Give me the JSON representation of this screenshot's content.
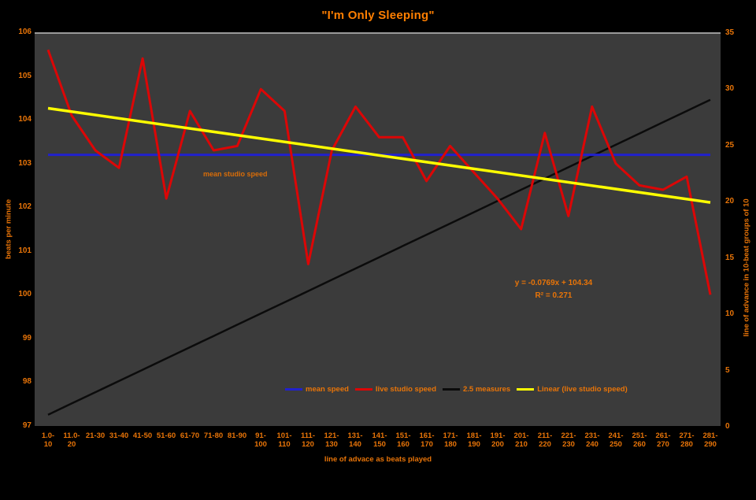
{
  "colors": {
    "background": "#000000",
    "plot_bg": "#3b3b3b",
    "plot_border_top": "#9a9a9a",
    "label_orange": "#e87408",
    "title_orange": "#ff7f00",
    "mean_line": "#2121cd",
    "live_line": "#dc0606",
    "measures_line": "#0b0b0b",
    "trend_line": "#ffff00"
  },
  "chart_data": {
    "type": "line",
    "title": "\"I'm Only Sleeping\"",
    "xlabel": "line of advace as beats played",
    "ylabel_left": "beats per minute",
    "ylabel_right": "line of advance in 10-beat groups of 10",
    "left_axis": {
      "min": 97,
      "max": 106,
      "step": 1,
      "ticks": [
        106,
        105,
        104,
        103,
        102,
        101,
        100,
        99,
        98,
        97
      ]
    },
    "right_axis": {
      "min": 0,
      "max": 35,
      "step": 5,
      "ticks": [
        35,
        30,
        25,
        20,
        15,
        10,
        5,
        0
      ]
    },
    "categories": [
      "1.0-10",
      "11.0-20",
      "21-30",
      "31-40",
      "41-50",
      "51-60",
      "61-70",
      "71-80",
      "81-90",
      "91-100",
      "101-110",
      "111-120",
      "121-130",
      "131-140",
      "141-150",
      "151-160",
      "161-170",
      "171-180",
      "181-190",
      "191-200",
      "201-210",
      "211-220",
      "221-230",
      "231-240",
      "241-250",
      "251-260",
      "261-270",
      "271-280",
      "281-290"
    ],
    "category_label_lines": [
      [
        "1.0-",
        "10"
      ],
      [
        "11.0-",
        "20"
      ],
      [
        "21-30"
      ],
      [
        "31-40"
      ],
      [
        "41-50"
      ],
      [
        "51-60"
      ],
      [
        "61-70"
      ],
      [
        "71-80"
      ],
      [
        "81-90"
      ],
      [
        "91-",
        "100"
      ],
      [
        "101-",
        "110"
      ],
      [
        "111-",
        "120"
      ],
      [
        "121-",
        "130"
      ],
      [
        "131-",
        "140"
      ],
      [
        "141-",
        "150"
      ],
      [
        "151-",
        "160"
      ],
      [
        "161-",
        "170"
      ],
      [
        "171-",
        "180"
      ],
      [
        "181-",
        "190"
      ],
      [
        "191-",
        "200"
      ],
      [
        "201-",
        "210"
      ],
      [
        "211-",
        "220"
      ],
      [
        "221-",
        "230"
      ],
      [
        "231-",
        "240"
      ],
      [
        "241-",
        "250"
      ],
      [
        "251-",
        "260"
      ],
      [
        "261-",
        "270"
      ],
      [
        "271-",
        "280"
      ],
      [
        "281-",
        "290"
      ]
    ],
    "series": [
      {
        "name": "mean speed",
        "slug": "mean-speed",
        "axis": "left",
        "color_key": "mean_line",
        "stroke_width": 3,
        "z": 2,
        "constant": 103.2
      },
      {
        "name": "live studio speed",
        "slug": "live-studio-speed",
        "axis": "left",
        "color_key": "live_line",
        "stroke_width": 3,
        "z": 3,
        "values": [
          105.6,
          104.1,
          103.3,
          102.9,
          105.4,
          102.2,
          104.2,
          103.3,
          103.4,
          104.7,
          104.2,
          100.7,
          103.3,
          104.3,
          103.6,
          103.6,
          102.6,
          103.4,
          102.8,
          102.2,
          101.5,
          103.7,
          101.8,
          104.3,
          103.0,
          102.5,
          102.4,
          102.7,
          100.0
        ]
      },
      {
        "name": "2.5 measures",
        "slug": "measures",
        "axis": "right",
        "color_key": "measures_line",
        "stroke_width": 2.5,
        "z": 1,
        "values": [
          1,
          2,
          3,
          4,
          5,
          6,
          7,
          8,
          9,
          10,
          11,
          12,
          13,
          14,
          15,
          16,
          17,
          18,
          19,
          20,
          21,
          22,
          23,
          24,
          25,
          26,
          27,
          28,
          29
        ]
      },
      {
        "name": "Linear (live studio speed)",
        "slug": "trend",
        "axis": "left",
        "color_key": "trend_line",
        "stroke_width": 3.5,
        "z": 4,
        "trend": {
          "slope": -0.0769,
          "intercept": 104.34
        }
      }
    ],
    "legend": {
      "position": "bottom-inside",
      "entries": [
        "mean speed",
        "live studio speed",
        "2.5 measures",
        "Linear (live studio speed)"
      ]
    },
    "annotations": {
      "equation": "y = -0.0769x + 104.34",
      "r2": "R² = 0.271",
      "mean_label": "mean studio speed"
    }
  }
}
